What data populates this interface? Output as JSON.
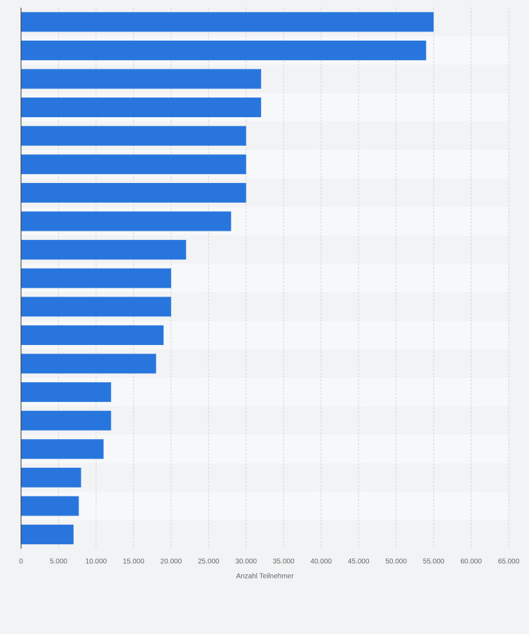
{
  "chart_data": {
    "type": "bar",
    "orientation": "horizontal",
    "title": "",
    "xlabel": "Anzahl Teilnehmer",
    "ylabel": "",
    "xlim": [
      0,
      65000
    ],
    "tick_values": [
      0,
      5000,
      10000,
      15000,
      20000,
      25000,
      30000,
      35000,
      40000,
      45000,
      50000,
      55000,
      60000,
      65000
    ],
    "tick_labels": [
      "0",
      "5.000",
      "10.000",
      "15.000",
      "20.000",
      "25.000",
      "30.000",
      "35.000",
      "40.000",
      "45.000",
      "50.000",
      "55.000",
      "60.000",
      "65.000"
    ],
    "categories": [
      "",
      "",
      "",
      "",
      "",
      "",
      "",
      "",
      "",
      "",
      "",
      "",
      "",
      "",
      "",
      "",
      "",
      "",
      ""
    ],
    "values": [
      55000,
      54000,
      32000,
      32000,
      30000,
      30000,
      30000,
      28000,
      22000,
      20000,
      20000,
      19000,
      18000,
      12000,
      12000,
      11000,
      8000,
      7700,
      7000
    ],
    "grid": true,
    "colors": {
      "bar": "#2876dd",
      "row_band_light": "#f7f8f9",
      "row_band_dark": "#f2f3f4",
      "gridline": "#d6d6d6",
      "axis": "#333333",
      "tick_text": "#666666"
    }
  }
}
